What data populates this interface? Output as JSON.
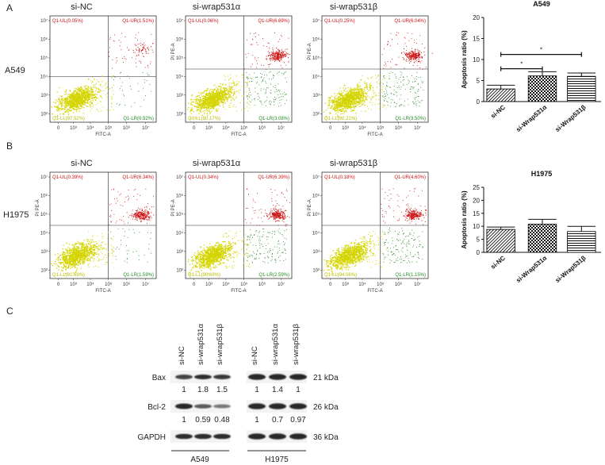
{
  "panel_labels": [
    "A",
    "B",
    "C"
  ],
  "flow_titles": [
    "si-NC",
    "si-wrap531α",
    "si-wrap531β"
  ],
  "flow_rows": [
    {
      "row_label": "A549",
      "plots": [
        {
          "ul": "Q1-UL(0.05%)",
          "ur": "Q1-UR(1.51%)",
          "ll": "Q1-LL(97.52%)",
          "lr": "Q1-LR(0.92%)",
          "ylabel": ""
        },
        {
          "ul": "Q1-UL(0.06%)",
          "ur": "Q1-UR(6.69%)",
          "ll": "Q1-LL(90.17%)",
          "lr": "Q1-LR(3.08%)",
          "ylabel": "PI PE-A"
        },
        {
          "ul": "Q1-UL(0.25%)",
          "ur": "Q1-UR(6.04%)",
          "ll": "Q1-LL(90.21%)",
          "lr": "Q1-LR(3.50%)",
          "ylabel": "PI PE-A"
        }
      ]
    },
    {
      "row_label": "H1975",
      "plots": [
        {
          "ul": "Q1-UL(0.39%)",
          "ur": "Q1-UR(6.34%)",
          "ll": "Q1-LL(91.69%)",
          "lr": "Q1-LR(1.59%)",
          "ylabel": "PI PE-A"
        },
        {
          "ul": "Q1-UL(0.34%)",
          "ur": "Q1-UR(6.39%)",
          "ll": "Q1-LL(90.69%)",
          "lr": "Q1-LR(2.59%)",
          "ylabel": "PI PE-A"
        },
        {
          "ul": "Q1-UL(0.18%)",
          "ur": "Q1-UR(4.60%)",
          "ll": "Q1-LL(94.06%)",
          "lr": "Q1-LR(1.15%)",
          "ylabel": "PI PE-A"
        }
      ]
    }
  ],
  "flow_axes": {
    "xlabel": "FITC-A",
    "x_ticks": [
      "0",
      "10³",
      "10⁴",
      "10⁵",
      "10⁶",
      "10⁷"
    ],
    "y_ticks": [
      "10²",
      "10³",
      "10⁴",
      "10⁵",
      "10⁶",
      "10⁷"
    ]
  },
  "chart_data": [
    {
      "type": "bar",
      "title": "A549",
      "ylabel": "Apoptosis ratio (%)",
      "categories": [
        "si-NC",
        "si-Wrap531α",
        "si-Wrap531β"
      ],
      "values": [
        3.0,
        6.1,
        6.0
      ],
      "errors": [
        0.9,
        1.0,
        0.8
      ],
      "ylim": [
        0,
        20
      ],
      "yticks": [
        "0",
        "5",
        "10",
        "15",
        "20"
      ],
      "significance": [
        {
          "from": 0,
          "to": 1,
          "label": "*"
        },
        {
          "from": 0,
          "to": 2,
          "label": "*"
        }
      ],
      "bar_fills": [
        "diagonal",
        "checker",
        "horizontal"
      ]
    },
    {
      "type": "bar",
      "title": "H1975",
      "ylabel": "Apoptosis ratio (%)",
      "categories": [
        "si-NC",
        "si-Wrap531α",
        "si-Wrap531β"
      ],
      "values": [
        8.8,
        10.8,
        8.0
      ],
      "errors": [
        0.9,
        1.9,
        2.0
      ],
      "ylim": [
        0,
        25
      ],
      "yticks": [
        "0",
        "5",
        "10",
        "15",
        "20",
        "25"
      ],
      "significance": [],
      "bar_fills": [
        "diagonal",
        "checker",
        "horizontal"
      ]
    }
  ],
  "western": {
    "lane_labels": [
      "si-NC",
      "si-wrap531α",
      "si-wrap531β",
      "si-NC",
      "si-wrap531α",
      "si-wrap531β"
    ],
    "proteins": [
      {
        "name": "Bax",
        "kda": "21 kDa",
        "values": [
          "1",
          "1.8",
          "1.5",
          "1",
          "1.4",
          "1"
        ]
      },
      {
        "name": "Bcl-2",
        "kda": "26 kDa",
        "values": [
          "1",
          "0.59",
          "0.48",
          "1",
          "0.7",
          "0.97"
        ]
      },
      {
        "name": "GAPDH",
        "kda": "36 kDa",
        "values": []
      }
    ],
    "cell_lines": [
      "A549",
      "H1975"
    ]
  },
  "colors": {
    "live": "#d4d400",
    "apoptotic_late": "#cc1111",
    "apoptotic_early": "#228b22",
    "band": "#1a1a1a"
  }
}
